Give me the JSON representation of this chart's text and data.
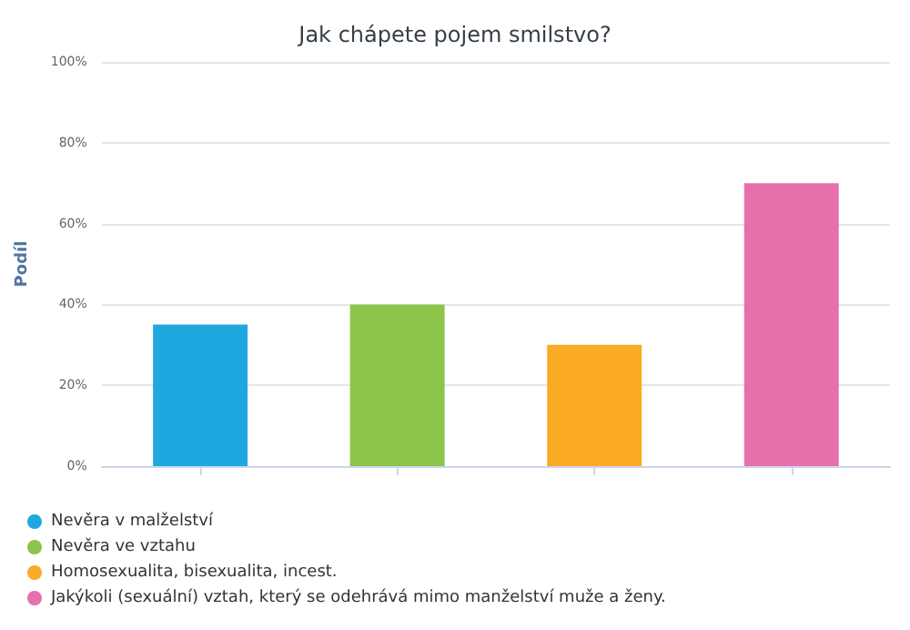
{
  "chart_data": {
    "type": "bar",
    "title": "Jak chápete pojem smilstvo?",
    "ylabel": "Podíl",
    "categories": [
      null,
      null,
      null,
      null
    ],
    "series": [
      {
        "name": "Nevěra v malželství",
        "color": "#1fa8e0",
        "values": [
          35,
          null,
          null,
          null
        ]
      },
      {
        "name": "Nevěra ve vztahu",
        "color": "#8bc64a",
        "values": [
          null,
          40,
          null,
          null
        ]
      },
      {
        "name": "Homosexualita, bisexualita, incest.",
        "color": "#fbaa26",
        "values": [
          null,
          null,
          30,
          null
        ]
      },
      {
        "name": "Jakýkoli (sexuální) vztah, který se odehrává mimo manželství muže a ženy.",
        "color": "#e76fab",
        "values": [
          null,
          null,
          null,
          70
        ]
      }
    ],
    "ylim": [
      0,
      100
    ],
    "yticks": [
      {
        "value": 0,
        "label": "0%"
      },
      {
        "value": 20,
        "label": "20%"
      },
      {
        "value": 40,
        "label": "40%"
      },
      {
        "value": 60,
        "label": "60%"
      },
      {
        "value": 80,
        "label": "80%"
      },
      {
        "value": 100,
        "label": "100%"
      }
    ],
    "grid": "y",
    "legend": "bottom left"
  }
}
